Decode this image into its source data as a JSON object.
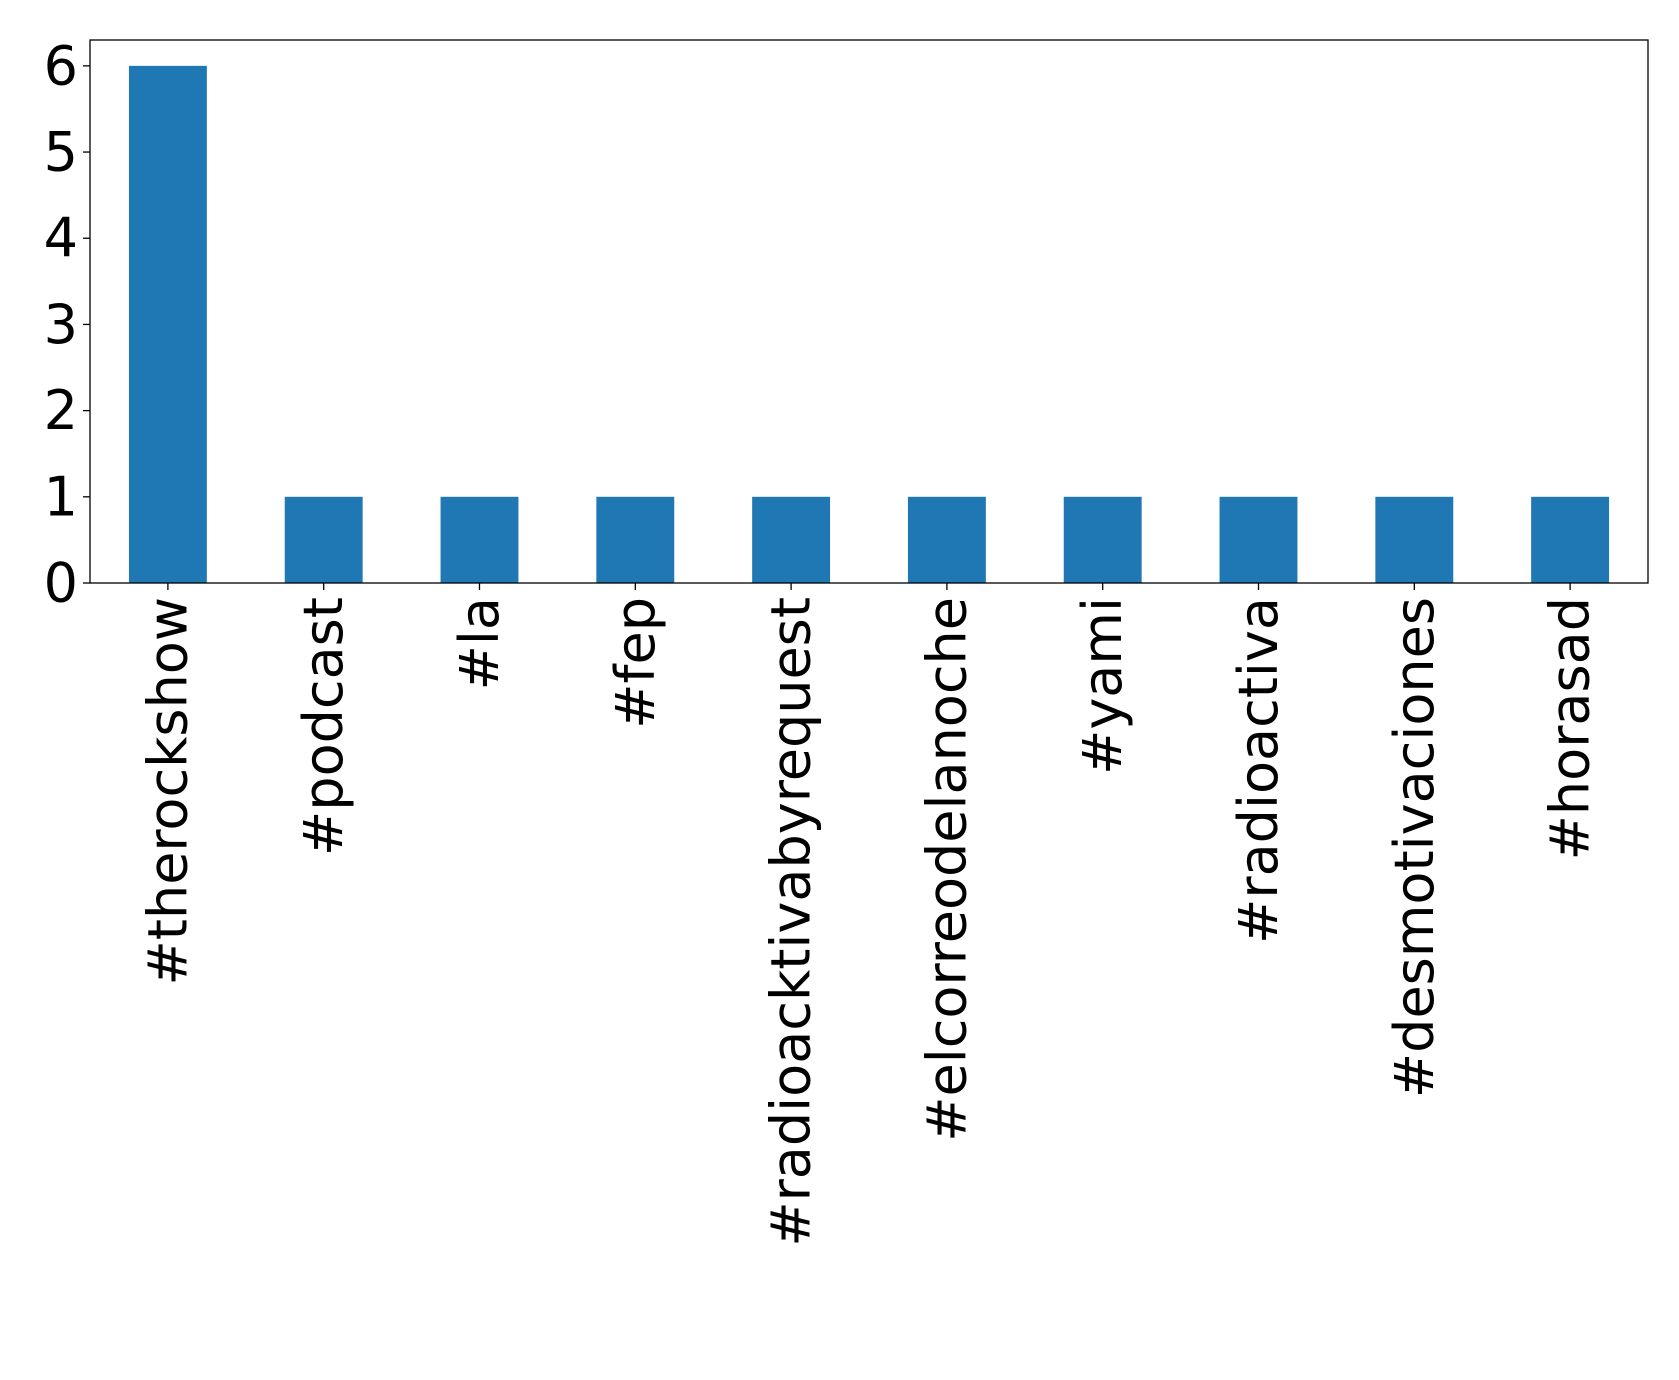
{
  "chart_data": {
    "type": "bar",
    "title": "",
    "xlabel": "",
    "ylabel": "",
    "categories": [
      "#therockshow",
      "#podcast",
      "#la",
      "#fep",
      "#radioacktivabyrequest",
      "#elcorreodelanoche",
      "#yami",
      "#radioactiva",
      "#desmotivaciones",
      "#horasad"
    ],
    "values": [
      6,
      1,
      1,
      1,
      1,
      1,
      1,
      1,
      1,
      1
    ],
    "ylim": [
      0,
      6.3
    ],
    "yticks": [
      "0",
      "1",
      "2",
      "3",
      "4",
      "5",
      "6"
    ],
    "bar_color": "#1f77b4",
    "grid": false,
    "legend": "none"
  }
}
